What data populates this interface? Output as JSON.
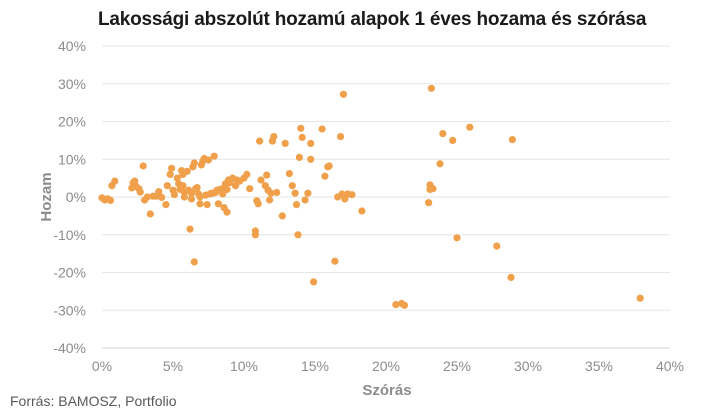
{
  "chart_data": {
    "type": "scatter",
    "title": "Lakossági abszolút hozamú alapok 1 éves hozama és szórása",
    "xlabel": "Szórás",
    "ylabel": "Hozam",
    "xlim": [
      0,
      0.4
    ],
    "ylim": [
      -0.4,
      0.4
    ],
    "xticks": [
      "0%",
      "5%",
      "10%",
      "15%",
      "20%",
      "25%",
      "30%",
      "35%",
      "40%"
    ],
    "yticks": [
      "40%",
      "30%",
      "20%",
      "10%",
      "0%",
      "-10%",
      "-20%",
      "-30%",
      "-40%"
    ],
    "grid": "horizontal",
    "marker_color": "#F0A04B",
    "points": [
      [
        0.0,
        -0.002
      ],
      [
        0.002,
        -0.008
      ],
      [
        0.004,
        -0.005
      ],
      [
        0.006,
        -0.009
      ],
      [
        0.007,
        0.03
      ],
      [
        0.009,
        0.042
      ],
      [
        0.021,
        0.024
      ],
      [
        0.022,
        0.038
      ],
      [
        0.023,
        0.042
      ],
      [
        0.024,
        0.028
      ],
      [
        0.026,
        0.022
      ],
      [
        0.027,
        0.013
      ],
      [
        0.029,
        0.082
      ],
      [
        0.03,
        -0.008
      ],
      [
        0.032,
        0.0
      ],
      [
        0.034,
        -0.045
      ],
      [
        0.036,
        0.002
      ],
      [
        0.038,
        0.002
      ],
      [
        0.04,
        0.014
      ],
      [
        0.042,
        -0.001
      ],
      [
        0.045,
        -0.02
      ],
      [
        0.046,
        0.03
      ],
      [
        0.048,
        0.06
      ],
      [
        0.049,
        0.076
      ],
      [
        0.05,
        0.018
      ],
      [
        0.051,
        0.006
      ],
      [
        0.053,
        0.05
      ],
      [
        0.054,
        0.035
      ],
      [
        0.055,
        0.02
      ],
      [
        0.056,
        0.07
      ],
      [
        0.057,
        0.06
      ],
      [
        0.057,
        0.03
      ],
      [
        0.058,
        0.012
      ],
      [
        0.058,
        0.0
      ],
      [
        0.06,
        0.068
      ],
      [
        0.061,
        0.018
      ],
      [
        0.062,
        -0.085
      ],
      [
        0.063,
        -0.005
      ],
      [
        0.063,
        0.01
      ],
      [
        0.064,
        0.08
      ],
      [
        0.065,
        0.09
      ],
      [
        0.065,
        -0.172
      ],
      [
        0.066,
        0.022
      ],
      [
        0.067,
        0.025
      ],
      [
        0.068,
        0.008
      ],
      [
        0.069,
        -0.018
      ],
      [
        0.069,
        0.0
      ],
      [
        0.07,
        0.085
      ],
      [
        0.071,
        0.095
      ],
      [
        0.072,
        0.102
      ],
      [
        0.073,
        0.005
      ],
      [
        0.074,
        -0.02
      ],
      [
        0.075,
        0.098
      ],
      [
        0.076,
        0.008
      ],
      [
        0.077,
        0.01
      ],
      [
        0.078,
        0.01
      ],
      [
        0.079,
        0.108
      ],
      [
        0.08,
        0.012
      ],
      [
        0.081,
        0.018
      ],
      [
        0.082,
        -0.018
      ],
      [
        0.083,
        0.02
      ],
      [
        0.084,
        0.018
      ],
      [
        0.085,
        0.008
      ],
      [
        0.086,
        -0.028
      ],
      [
        0.086,
        0.025
      ],
      [
        0.087,
        0.035
      ],
      [
        0.088,
        0.02
      ],
      [
        0.088,
        -0.04
      ],
      [
        0.089,
        0.045
      ],
      [
        0.09,
        0.038
      ],
      [
        0.092,
        0.05
      ],
      [
        0.094,
        0.03
      ],
      [
        0.095,
        0.045
      ],
      [
        0.097,
        0.042
      ],
      [
        0.1,
        0.05
      ],
      [
        0.102,
        0.06
      ],
      [
        0.104,
        0.022
      ],
      [
        0.108,
        -0.09
      ],
      [
        0.108,
        -0.1
      ],
      [
        0.109,
        -0.01
      ],
      [
        0.11,
        -0.018
      ],
      [
        0.111,
        0.148
      ],
      [
        0.112,
        0.045
      ],
      [
        0.115,
        0.03
      ],
      [
        0.116,
        0.058
      ],
      [
        0.117,
        0.018
      ],
      [
        0.118,
        -0.008
      ],
      [
        0.119,
        0.01
      ],
      [
        0.12,
        0.148
      ],
      [
        0.121,
        0.16
      ],
      [
        0.123,
        0.012
      ],
      [
        0.127,
        -0.05
      ],
      [
        0.129,
        0.142
      ],
      [
        0.132,
        0.062
      ],
      [
        0.134,
        0.03
      ],
      [
        0.136,
        0.01
      ],
      [
        0.137,
        -0.02
      ],
      [
        0.138,
        -0.1
      ],
      [
        0.139,
        0.105
      ],
      [
        0.14,
        0.182
      ],
      [
        0.141,
        0.158
      ],
      [
        0.143,
        -0.008
      ],
      [
        0.145,
        0.01
      ],
      [
        0.147,
        0.1
      ],
      [
        0.147,
        0.142
      ],
      [
        0.149,
        -0.225
      ],
      [
        0.155,
        0.18
      ],
      [
        0.157,
        0.055
      ],
      [
        0.159,
        0.08
      ],
      [
        0.16,
        0.082
      ],
      [
        0.164,
        -0.17
      ],
      [
        0.166,
        0.0
      ],
      [
        0.168,
        0.16
      ],
      [
        0.169,
        0.008
      ],
      [
        0.17,
        0.272
      ],
      [
        0.171,
        -0.005
      ],
      [
        0.173,
        0.008
      ],
      [
        0.176,
        0.006
      ],
      [
        0.183,
        -0.037
      ],
      [
        0.207,
        -0.285
      ],
      [
        0.211,
        -0.282
      ],
      [
        0.213,
        -0.287
      ],
      [
        0.23,
        -0.015
      ],
      [
        0.231,
        0.02
      ],
      [
        0.231,
        0.032
      ],
      [
        0.232,
        0.288
      ],
      [
        0.233,
        0.022
      ],
      [
        0.238,
        0.088
      ],
      [
        0.24,
        0.168
      ],
      [
        0.247,
        0.15
      ],
      [
        0.25,
        -0.108
      ],
      [
        0.259,
        0.185
      ],
      [
        0.278,
        -0.13
      ],
      [
        0.288,
        -0.213
      ],
      [
        0.289,
        0.152
      ],
      [
        0.379,
        -0.268
      ]
    ]
  },
  "source": "Forrás: BAMOSZ, Portfolio"
}
